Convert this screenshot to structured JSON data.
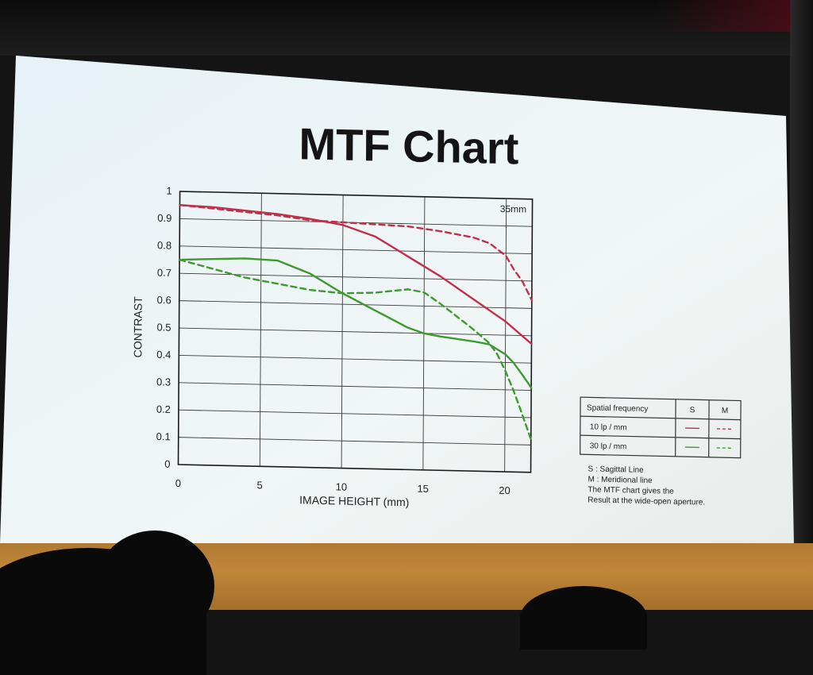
{
  "slide": {
    "title": "MTF Chart",
    "lens": "35mm"
  },
  "legend": {
    "headers": [
      "Spatial frequency",
      "S",
      "M"
    ],
    "rows": [
      "10 lp / mm",
      "30 lp / mm"
    ],
    "colors": {
      "10": "#c0304a",
      "30": "#3c9a2e"
    }
  },
  "notes": [
    "S : Sagittal Line",
    "M : Meridional line",
    "The MTF chart gives the",
    "Result at the wide-open aperture."
  ],
  "chart_data": {
    "type": "line",
    "title": "MTF Chart",
    "xlabel": "IMAGE HEIGHT (mm)",
    "ylabel": "CONTRAST",
    "xlim": [
      0,
      21.6
    ],
    "ylim": [
      0,
      1
    ],
    "xticks": [
      "0",
      "5",
      "10",
      "15",
      "20"
    ],
    "yticks": [
      "0",
      "0.1",
      "0.2",
      "0.3",
      "0.4",
      "0.5",
      "0.6",
      "0.7",
      "0.8",
      "0.9",
      "1"
    ],
    "grid": true,
    "series": [
      {
        "name": "10 lp / mm S",
        "color": "#c0304a",
        "dashed": false,
        "x": [
          0,
          2,
          4,
          6,
          8,
          10,
          12,
          14,
          16,
          18,
          20,
          21.6
        ],
        "y": [
          0.95,
          0.945,
          0.935,
          0.925,
          0.91,
          0.89,
          0.85,
          0.78,
          0.71,
          0.63,
          0.55,
          0.47
        ]
      },
      {
        "name": "10 lp / mm M",
        "color": "#c0304a",
        "dashed": true,
        "x": [
          0,
          2,
          4,
          6,
          8,
          10,
          12,
          14,
          16,
          18,
          19,
          20,
          20.5,
          21,
          21.6
        ],
        "y": [
          0.95,
          0.94,
          0.93,
          0.92,
          0.905,
          0.9,
          0.895,
          0.89,
          0.875,
          0.855,
          0.835,
          0.79,
          0.74,
          0.7,
          0.63
        ]
      },
      {
        "name": "30 lp / mm S",
        "color": "#3c9a2e",
        "dashed": false,
        "x": [
          0,
          2,
          4,
          6,
          8,
          10,
          12,
          14,
          15,
          16,
          18,
          19,
          20,
          20.5,
          21,
          21.6
        ],
        "y": [
          0.75,
          0.755,
          0.76,
          0.755,
          0.71,
          0.64,
          0.58,
          0.52,
          0.5,
          0.49,
          0.475,
          0.465,
          0.43,
          0.4,
          0.36,
          0.31
        ]
      },
      {
        "name": "30 lp / mm M",
        "color": "#3c9a2e",
        "dashed": true,
        "x": [
          0,
          2,
          4,
          6,
          8,
          10,
          12,
          14,
          15,
          16,
          18,
          19,
          19.5,
          20,
          20.5,
          21,
          21.6
        ],
        "y": [
          0.75,
          0.72,
          0.69,
          0.67,
          0.65,
          0.64,
          0.645,
          0.66,
          0.65,
          0.61,
          0.52,
          0.47,
          0.43,
          0.37,
          0.3,
          0.22,
          0.12
        ]
      }
    ]
  }
}
